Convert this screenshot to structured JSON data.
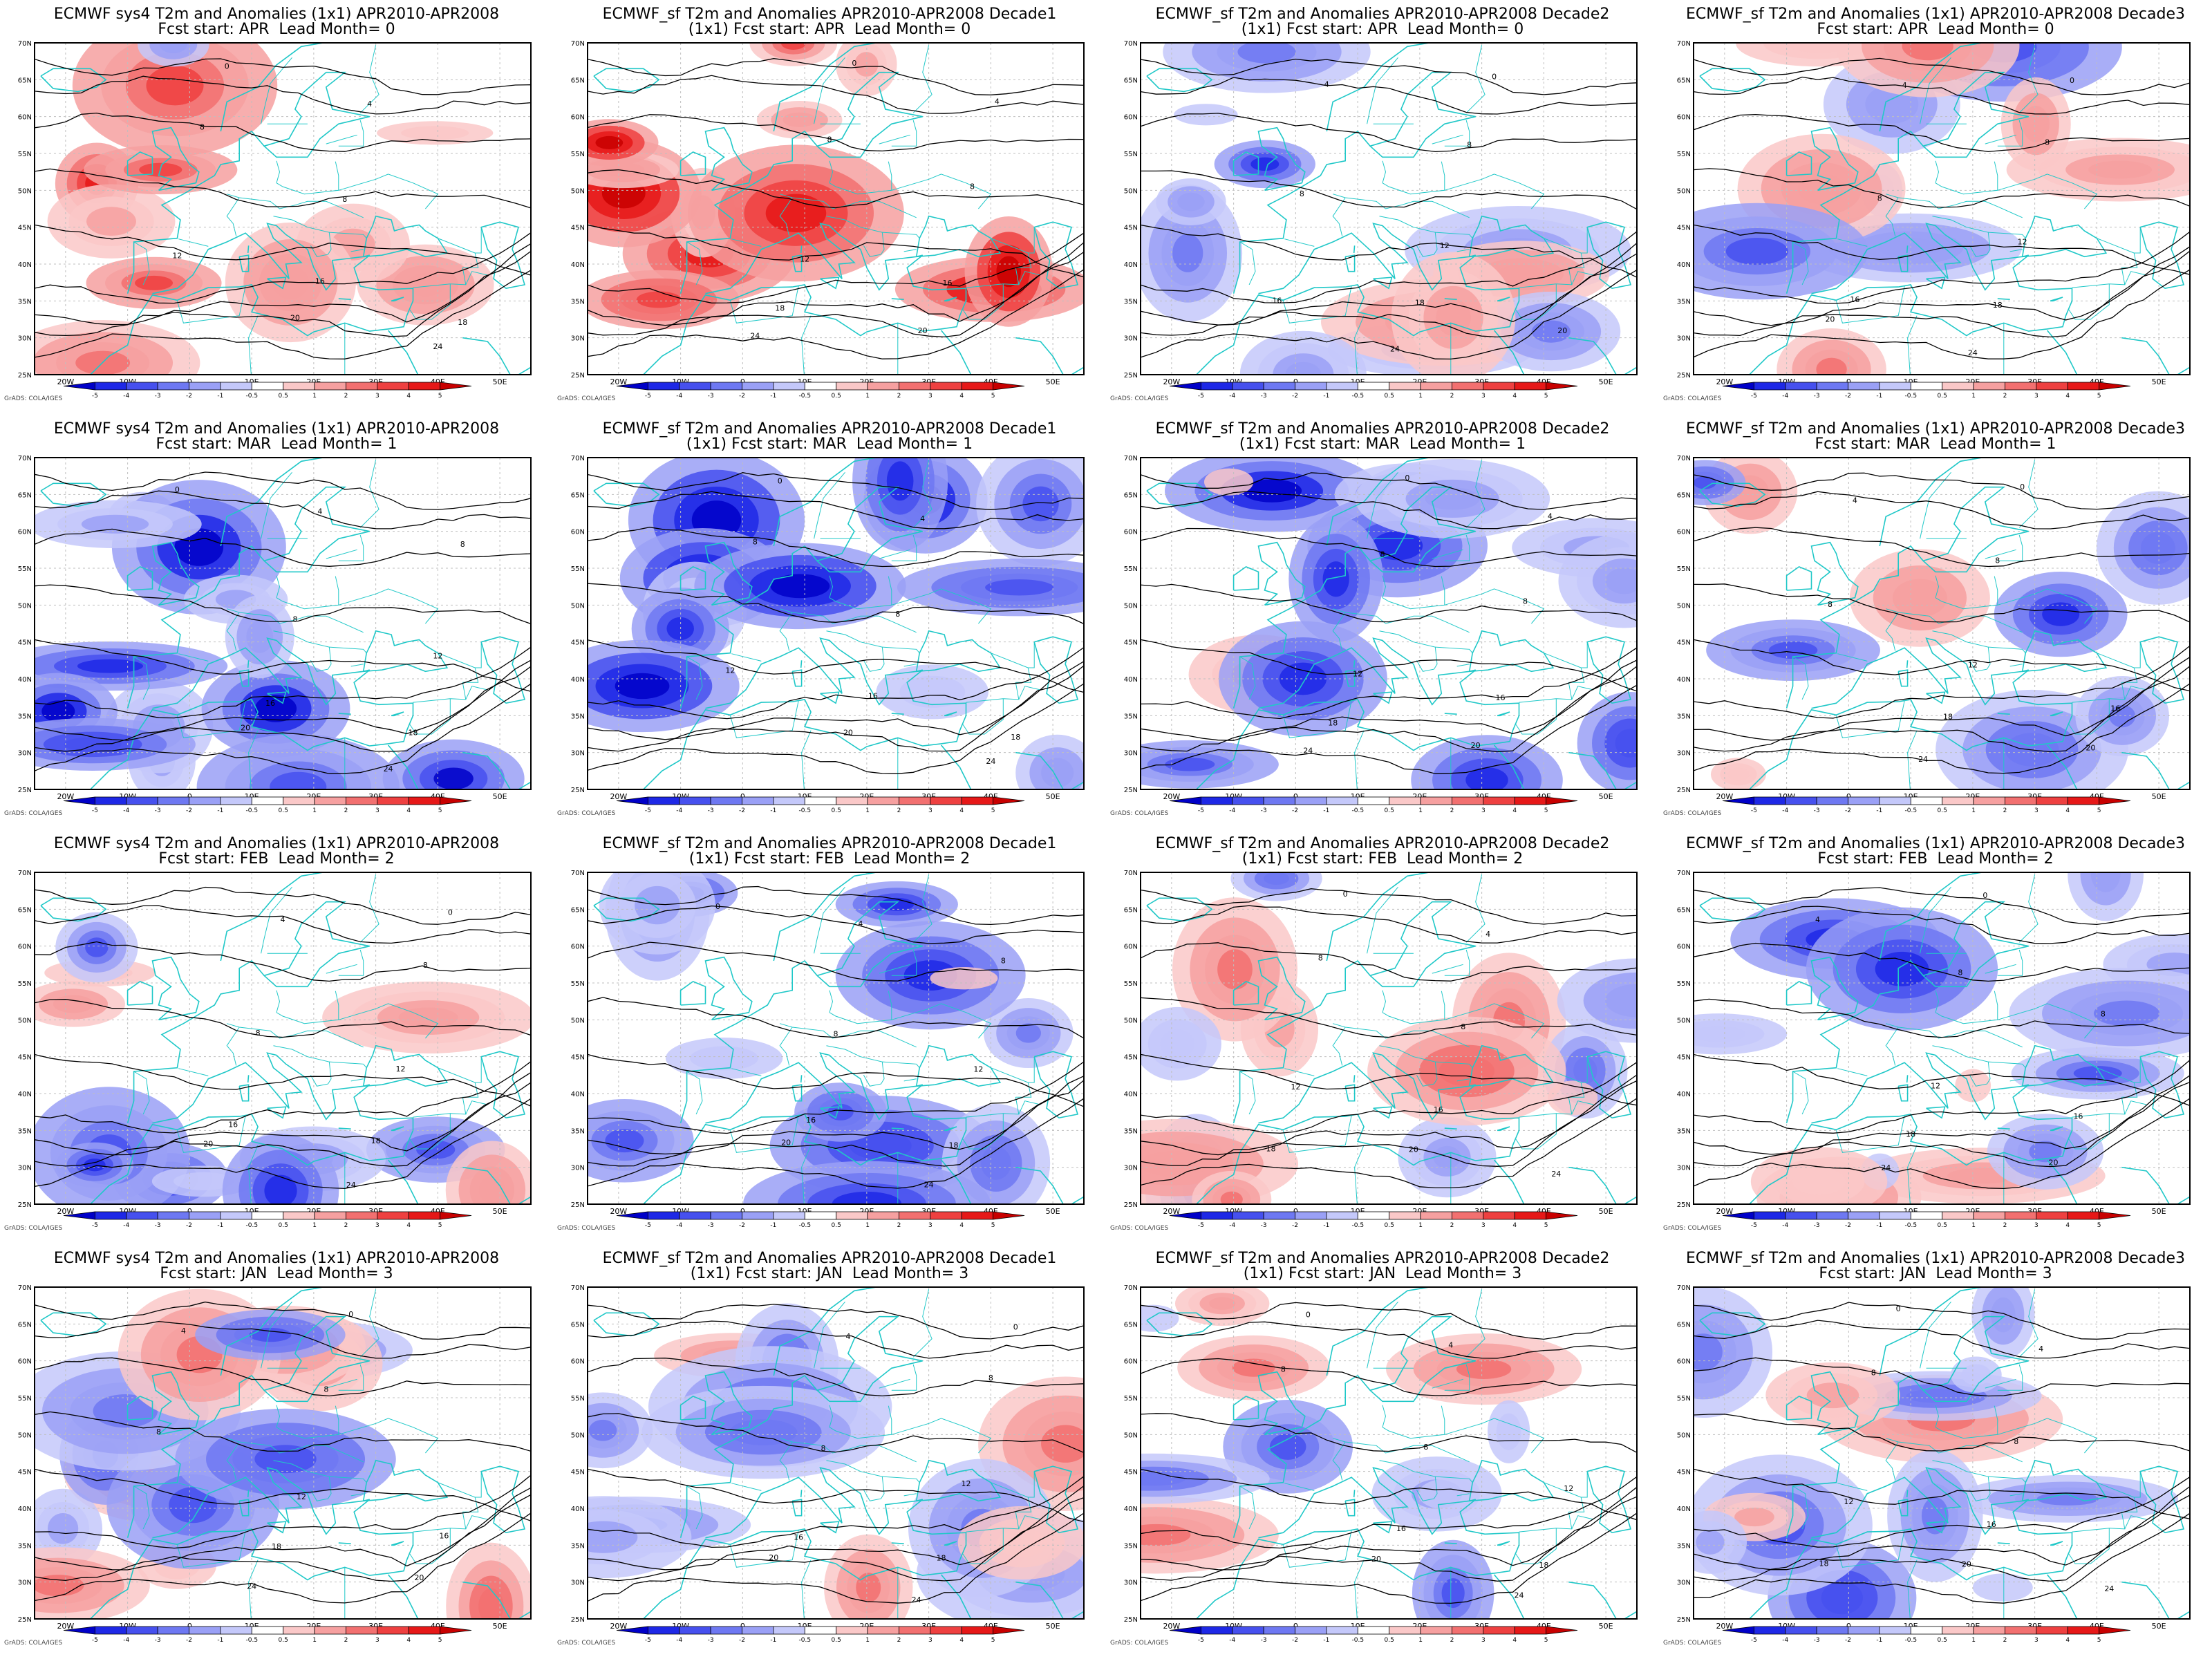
{
  "layout": {
    "rows": 4,
    "cols": 4
  },
  "map_common": {
    "lat_labels": [
      "70N",
      "65N",
      "60N",
      "55N",
      "50N",
      "45N",
      "40N",
      "35N",
      "30N",
      "25N"
    ],
    "lon_labels": [
      "20W",
      "10W",
      "0",
      "10E",
      "20E",
      "30E",
      "40E",
      "50E"
    ],
    "colorbar_ticks": [
      "-5",
      "-4",
      "-3",
      "-2",
      "-1",
      "-0.5",
      "0.5",
      "1",
      "2",
      "3",
      "4",
      "5"
    ],
    "credit": "GrADS: COLA/IGES",
    "colors": {
      "anomaly_scale": [
        "#0000c8",
        "#1e28e6",
        "#4650ee",
        "#6e78f2",
        "#9aa0f6",
        "#c4c8fa",
        "#ffffff",
        "#fac8c8",
        "#f6a0a0",
        "#f27070",
        "#ee4040",
        "#e61818",
        "#c80000"
      ],
      "contour": "#000000",
      "coast": "#20c8c8"
    }
  },
  "panels": [
    {
      "title1": "ECMWF sys4 T2m and Anomalies (1x1) APR2010-APR2008",
      "title2": "Fcst start: APR  Lead Month= 0",
      "bias": 0.8,
      "seed": 11
    },
    {
      "title1": "ECMWF_sf T2m and Anomalies APR2010-APR2008 Decade1",
      "title2": "(1x1) Fcst start: APR  Lead Month= 0",
      "bias": 1.2,
      "seed": 23
    },
    {
      "title1": "ECMWF_sf T2m and Anomalies APR2010-APR2008 Decade2",
      "title2": "(1x1) Fcst start: APR  Lead Month= 0",
      "bias": -0.6,
      "seed": 37
    },
    {
      "title1": "ECMWF_sf T2m and Anomalies (1x1) APR2010-APR2008 Decade3",
      "title2": "Fcst start: APR  Lead Month= 0",
      "bias": -0.2,
      "seed": 41
    },
    {
      "title1": "ECMWF sys4 T2m and Anomalies (1x1) APR2010-APR2008",
      "title2": "Fcst start: MAR  Lead Month= 1",
      "bias": -1.1,
      "seed": 53
    },
    {
      "title1": "ECMWF_sf T2m and Anomalies APR2010-APR2008 Decade1",
      "title2": "(1x1) Fcst start: MAR  Lead Month= 1",
      "bias": -1.4,
      "seed": 61
    },
    {
      "title1": "ECMWF_sf T2m and Anomalies APR2010-APR2008 Decade2",
      "title2": "(1x1) Fcst start: MAR  Lead Month= 1",
      "bias": -1.0,
      "seed": 73
    },
    {
      "title1": "ECMWF_sf T2m and Anomalies (1x1) APR2010-APR2008 Decade3",
      "title2": "Fcst start: MAR  Lead Month= 1",
      "bias": -0.8,
      "seed": 83
    },
    {
      "title1": "ECMWF sys4 T2m and Anomalies (1x1) APR2010-APR2008",
      "title2": "Fcst start: FEB  Lead Month= 2",
      "bias": -0.5,
      "seed": 97
    },
    {
      "title1": "ECMWF_sf T2m and Anomalies APR2010-APR2008 Decade1",
      "title2": "(1x1) Fcst start: FEB  Lead Month= 2",
      "bias": -0.9,
      "seed": 101
    },
    {
      "title1": "ECMWF_sf T2m and Anomalies APR2010-APR2008 Decade2",
      "title2": "(1x1) Fcst start: FEB  Lead Month= 2",
      "bias": -0.1,
      "seed": 113
    },
    {
      "title1": "ECMWF_sf T2m and Anomalies (1x1) APR2010-APR2008 Decade3",
      "title2": "Fcst start: FEB  Lead Month= 2",
      "bias": -0.4,
      "seed": 127
    },
    {
      "title1": "ECMWF sys4 T2m and Anomalies (1x1) APR2010-APR2008",
      "title2": "Fcst start: JAN  Lead Month= 3",
      "bias": -0.2,
      "seed": 131
    },
    {
      "title1": "ECMWF_sf T2m and Anomalies APR2010-APR2008 Decade1",
      "title2": "(1x1) Fcst start: JAN  Lead Month= 3",
      "bias": 0.1,
      "seed": 149
    },
    {
      "title1": "ECMWF_sf T2m and Anomalies APR2010-APR2008 Decade2",
      "title2": "(1x1) Fcst start: JAN  Lead Month= 3",
      "bias": -0.1,
      "seed": 157
    },
    {
      "title1": "ECMWF_sf T2m and Anomalies (1x1) APR2010-APR2008 Decade3",
      "title2": "Fcst start: JAN  Lead Month= 3",
      "bias": -0.3,
      "seed": 163
    }
  ]
}
